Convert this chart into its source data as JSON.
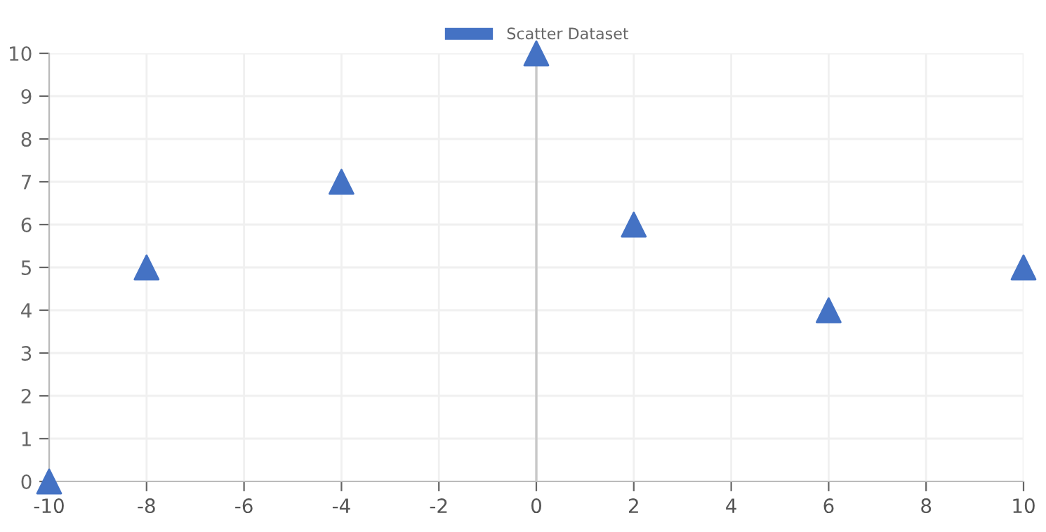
{
  "chart_data": {
    "type": "scatter",
    "x": [
      -10,
      -8,
      -4,
      0,
      2,
      6,
      10
    ],
    "series": [
      {
        "name": "Scatter Dataset",
        "color": "#4472c4",
        "values": [
          0,
          5,
          7,
          10,
          6,
          4,
          5
        ]
      }
    ],
    "xlim": [
      -10,
      10
    ],
    "xticks": [
      -10,
      -8,
      -6,
      -4,
      -2,
      0,
      2,
      4,
      6,
      8,
      10
    ],
    "ylim": [
      0,
      10
    ],
    "yticks": [
      0,
      1,
      2,
      3,
      4,
      5,
      6,
      7,
      8,
      9,
      10
    ],
    "grid": true,
    "legend": "top",
    "marker": "triangle",
    "ref_lines": [
      {
        "axis": "x",
        "value": 0,
        "color": "#c8c8c8"
      }
    ]
  }
}
